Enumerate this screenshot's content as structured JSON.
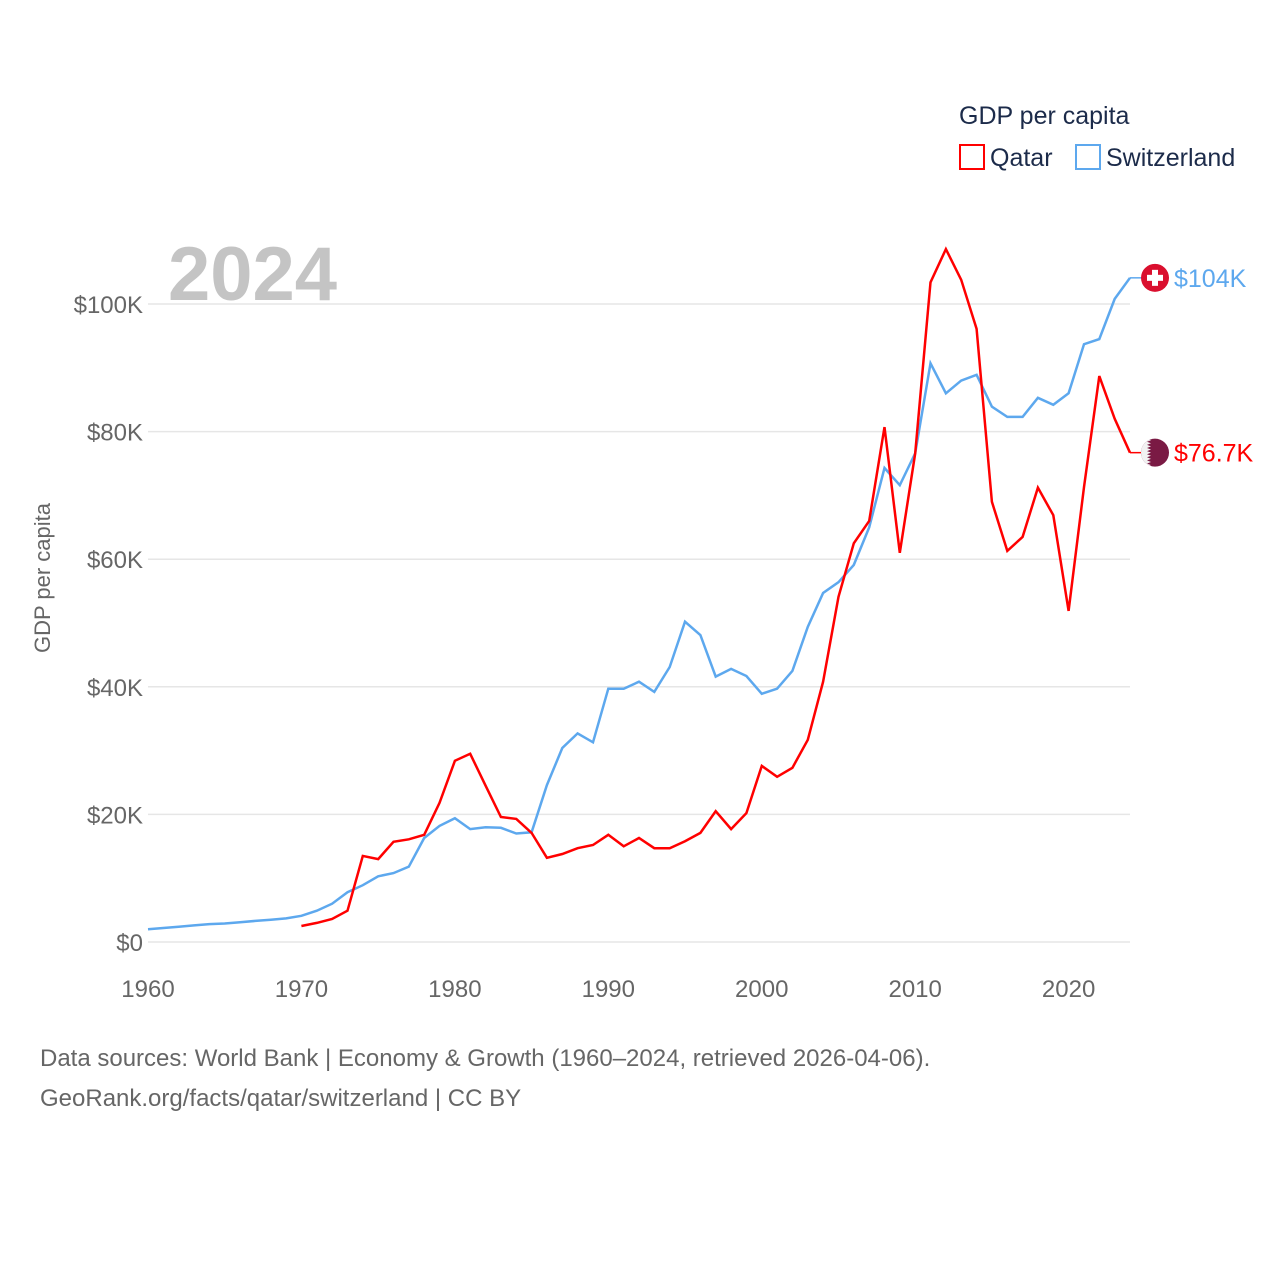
{
  "chart_data": {
    "type": "line",
    "title": "GDP per capita",
    "year_label": "2024",
    "xlabel": "",
    "ylabel": "GDP per capita",
    "xlim": [
      1960,
      2024
    ],
    "ylim": [
      0,
      100000
    ],
    "grid": true,
    "legend_position": "top-right",
    "x_ticks": [
      1960,
      1970,
      1980,
      1990,
      2000,
      2010,
      2020
    ],
    "y_ticks": [
      0,
      20000,
      40000,
      60000,
      80000,
      100000
    ],
    "y_tick_labels": [
      "$0",
      "$20K",
      "$40K",
      "$60K",
      "$80K",
      "$100K"
    ],
    "series": [
      {
        "name": "Qatar",
        "color": "#ff0000",
        "end_label": "$76.7K",
        "flag": "qatar-flag",
        "start_year": 1970,
        "values": [
          2.5,
          3.0,
          3.6,
          4.9,
          13.5,
          13.0,
          15.7,
          16.1,
          16.8,
          21.8,
          28.4,
          29.5,
          24.5,
          19.6,
          19.3,
          17.1,
          13.2,
          13.8,
          14.7,
          15.2,
          16.8,
          15.0,
          16.3,
          14.7,
          14.7,
          15.8,
          17.1,
          20.5,
          17.7,
          20.2,
          27.6,
          25.9,
          27.3,
          31.7,
          40.8,
          54.1,
          62.5,
          66.0,
          80.7,
          61.0,
          76.6,
          103.4,
          108.6,
          103.8,
          96.1,
          69.0,
          61.3,
          63.5,
          71.2,
          66.9,
          51.9,
          71.3,
          88.7,
          82.0,
          76.7
        ],
        "unit": "thousand USD"
      },
      {
        "name": "Switzerland",
        "color": "#5da8ee",
        "end_label": "$104K",
        "flag": "switzerland-flag",
        "start_year": 1960,
        "values": [
          2.0,
          2.2,
          2.4,
          2.6,
          2.8,
          2.9,
          3.1,
          3.3,
          3.5,
          3.7,
          4.1,
          4.9,
          6.0,
          7.8,
          8.9,
          10.3,
          10.8,
          11.8,
          16.3,
          18.2,
          19.4,
          17.7,
          18.0,
          17.9,
          17.0,
          17.2,
          24.6,
          30.4,
          32.7,
          31.3,
          39.7,
          39.7,
          40.8,
          39.2,
          43.1,
          50.2,
          48.1,
          41.6,
          42.8,
          41.7,
          38.9,
          39.7,
          42.5,
          49.4,
          54.7,
          56.4,
          59.1,
          65.0,
          74.3,
          71.6,
          76.6,
          90.7,
          86.0,
          88.0,
          88.9,
          83.9,
          82.3,
          82.3,
          85.3,
          84.2,
          86.0,
          93.7,
          94.5,
          100.8,
          104.1
        ],
        "unit": "thousand USD"
      }
    ]
  },
  "footer": {
    "sources": "Data sources: World Bank | Economy & Growth (1960–2024, retrieved 2026-04-06).",
    "link": "GeoRank.org/facts/qatar/switzerland | CC BY"
  }
}
